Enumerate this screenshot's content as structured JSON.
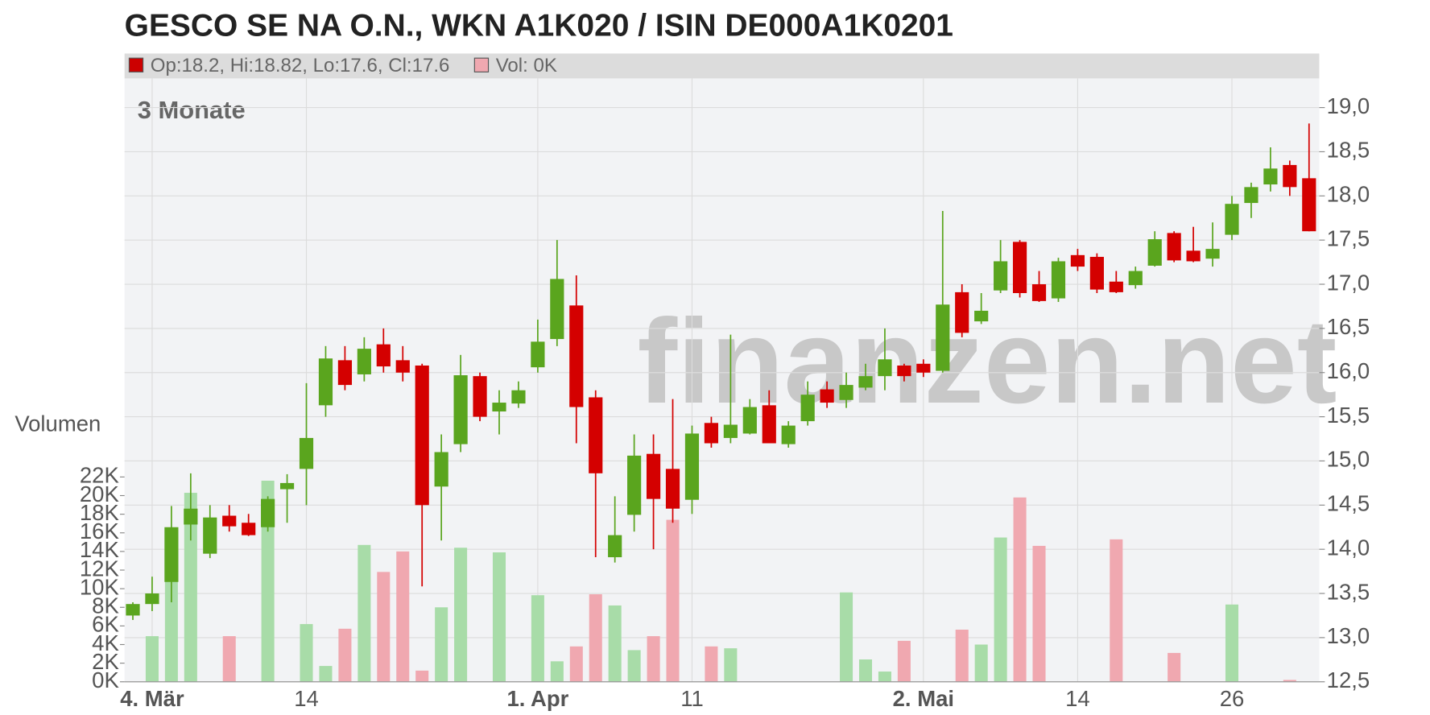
{
  "chart_data": {
    "type": "candlestick",
    "title": "GESCO SE NA O.N., WKN A1K020 / ISIN DE000A1K0201",
    "legend": [
      {
        "text": "Op:18.2, Hi:18.82, Lo:17.6, Cl:17.6",
        "color": "#cc0000"
      },
      {
        "text": "Vol: 0K",
        "color": "#f0a8b0"
      }
    ],
    "period_label": "3 Monate",
    "volume_label": "Volumen",
    "watermark": "finanzen.net",
    "categories": [
      null,
      "4. Mär",
      null,
      null,
      null,
      null,
      null,
      null,
      null,
      "14",
      null,
      null,
      null,
      null,
      null,
      null,
      null,
      null,
      null,
      null,
      null,
      "1. Apr",
      null,
      null,
      null,
      null,
      null,
      null,
      null,
      "11",
      null,
      null,
      null,
      null,
      null,
      null,
      null,
      null,
      null,
      null,
      null,
      "2. Mai",
      null,
      null,
      null,
      null,
      null,
      null,
      null,
      "14",
      null,
      null,
      null,
      null,
      null,
      null,
      null,
      "26",
      null,
      null,
      null,
      null
    ],
    "open": [
      13.25,
      13.38,
      13.63,
      14.28,
      13.95,
      14.38,
      14.3,
      14.25,
      14.68,
      14.91,
      15.63,
      16.14,
      15.98,
      16.32,
      16.14,
      16.08,
      14.71,
      15.19,
      15.96,
      15.56,
      15.65,
      16.06,
      16.38,
      16.76,
      15.72,
      13.91,
      14.39,
      15.08,
      14.91,
      14.56,
      15.43,
      15.26,
      15.31,
      15.63,
      15.19,
      15.45,
      15.81,
      15.69,
      15.83,
      15.96,
      16.08,
      16.1,
      16.02,
      16.91,
      16.58,
      16.93,
      17.48,
      17.0,
      16.84,
      17.33,
      17.31,
      17.03,
      16.99,
      17.21,
      17.58,
      17.38,
      17.29,
      17.56,
      17.92,
      18.13,
      18.35,
      18.2
    ],
    "high": [
      13.4,
      13.69,
      14.49,
      14.86,
      14.5,
      14.5,
      14.4,
      14.6,
      14.85,
      15.88,
      16.3,
      16.3,
      16.4,
      16.5,
      16.3,
      16.1,
      15.3,
      16.2,
      16.0,
      15.8,
      15.9,
      16.6,
      17.5,
      17.1,
      15.8,
      14.6,
      15.3,
      15.3,
      15.7,
      15.4,
      15.5,
      16.43,
      15.7,
      15.8,
      15.45,
      15.9,
      15.9,
      16.0,
      16.1,
      16.5,
      16.1,
      16.15,
      17.83,
      17.0,
      16.9,
      17.5,
      17.5,
      17.15,
      17.3,
      17.4,
      17.35,
      17.15,
      17.2,
      17.6,
      17.6,
      17.65,
      17.7,
      18.0,
      18.15,
      18.55,
      18.4,
      18.82
    ],
    "low": [
      13.2,
      13.3,
      13.4,
      14.1,
      13.9,
      14.2,
      14.15,
      14.2,
      14.3,
      14.5,
      15.5,
      15.8,
      15.9,
      16.0,
      15.9,
      13.58,
      14.1,
      15.1,
      15.45,
      15.3,
      15.6,
      16.0,
      16.3,
      15.2,
      13.91,
      13.85,
      14.2,
      14.0,
      14.3,
      14.4,
      15.15,
      15.2,
      15.3,
      15.2,
      15.15,
      15.4,
      15.6,
      15.6,
      15.8,
      15.8,
      15.9,
      15.95,
      16.0,
      16.4,
      16.55,
      16.9,
      16.85,
      16.8,
      16.8,
      17.15,
      16.9,
      16.9,
      16.95,
      17.2,
      17.25,
      17.25,
      17.2,
      17.5,
      17.75,
      18.05,
      18.0,
      17.6
    ],
    "close": [
      13.38,
      13.5,
      14.25,
      14.46,
      14.36,
      14.26,
      14.16,
      14.57,
      14.75,
      15.26,
      16.16,
      15.86,
      16.27,
      16.07,
      16.0,
      14.5,
      15.1,
      15.97,
      15.5,
      15.66,
      15.8,
      16.35,
      17.06,
      15.61,
      14.86,
      14.16,
      15.06,
      14.57,
      14.46,
      15.31,
      15.2,
      15.41,
      15.61,
      15.2,
      15.4,
      15.75,
      15.66,
      15.86,
      15.96,
      16.15,
      15.96,
      16.0,
      16.77,
      16.45,
      16.7,
      17.26,
      16.9,
      16.81,
      17.26,
      17.2,
      16.94,
      16.91,
      17.15,
      17.51,
      17.27,
      17.26,
      17.4,
      17.91,
      18.1,
      18.31,
      18.1,
      17.6
    ],
    "volume": [
      0,
      4900,
      13300,
      20300,
      0,
      4900,
      0,
      21600,
      0,
      6200,
      1700,
      5700,
      14700,
      11800,
      14000,
      1200,
      8000,
      14400,
      0,
      13900,
      0,
      9300,
      2200,
      3800,
      9400,
      8200,
      3400,
      4900,
      17400,
      0,
      3800,
      3600,
      0,
      0,
      0,
      0,
      0,
      9600,
      2400,
      1100,
      4400,
      0,
      0,
      5600,
      4000,
      15500,
      19800,
      14600,
      0,
      0,
      0,
      15300,
      0,
      0,
      3100,
      0,
      0,
      8300,
      0,
      0,
      200,
      0
    ],
    "up_color": "#5aa51e",
    "down_color": "#d40000",
    "volume_up_color": "#a8dca8",
    "volume_down_color": "#f0a8b0",
    "ylim": [
      12.5,
      19.33
    ],
    "yticks": [
      {
        "value": 12.5,
        "label": "12,5"
      },
      {
        "value": 13,
        "label": "13,0"
      },
      {
        "value": 13.5,
        "label": "13,5"
      },
      {
        "value": 14,
        "label": "14,0"
      },
      {
        "value": 14.5,
        "label": "14,5"
      },
      {
        "value": 15,
        "label": "15,0"
      },
      {
        "value": 15.5,
        "label": "15,5"
      },
      {
        "value": 16,
        "label": "16,0"
      },
      {
        "value": 16.5,
        "label": "16,5"
      },
      {
        "value": 17,
        "label": "17,0"
      },
      {
        "value": 17.5,
        "label": "17,5"
      },
      {
        "value": 18,
        "label": "18,0"
      },
      {
        "value": 18.5,
        "label": "18,5"
      },
      {
        "value": 19,
        "label": "19,0"
      }
    ],
    "volume_ylim": [
      0,
      22000
    ],
    "volume_yticks": [
      {
        "value": 0,
        "label": "0K"
      },
      {
        "value": 2000,
        "label": "2K"
      },
      {
        "value": 4000,
        "label": "4K"
      },
      {
        "value": 6000,
        "label": "6K"
      },
      {
        "value": 8000,
        "label": "8K"
      },
      {
        "value": 10000,
        "label": "10K"
      },
      {
        "value": 12000,
        "label": "12K"
      },
      {
        "value": 14000,
        "label": "14K"
      },
      {
        "value": 16000,
        "label": "16K"
      },
      {
        "value": 18000,
        "label": "18K"
      },
      {
        "value": 20000,
        "label": "20K"
      },
      {
        "value": 22000,
        "label": "22K"
      }
    ],
    "grid": true
  }
}
